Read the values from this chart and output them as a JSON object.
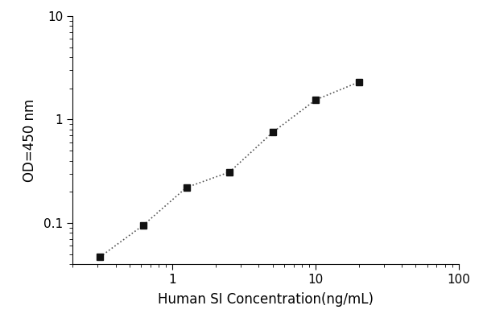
{
  "x": [
    0.3125,
    0.625,
    1.25,
    2.5,
    5.0,
    10.0,
    20.0
  ],
  "y": [
    0.047,
    0.095,
    0.22,
    0.31,
    0.75,
    1.55,
    2.3
  ],
  "xlabel": "Human SI Concentration(ng/mL)",
  "ylabel": "OD=450 nm",
  "xlim": [
    0.2,
    100
  ],
  "ylim": [
    0.04,
    10
  ],
  "line_color": "#555555",
  "marker_color": "#111111",
  "marker": "s",
  "marker_size": 6,
  "line_style": ":",
  "line_width": 1.2,
  "bg_color": "#ffffff",
  "xlabel_fontsize": 12,
  "ylabel_fontsize": 12,
  "tick_fontsize": 11
}
